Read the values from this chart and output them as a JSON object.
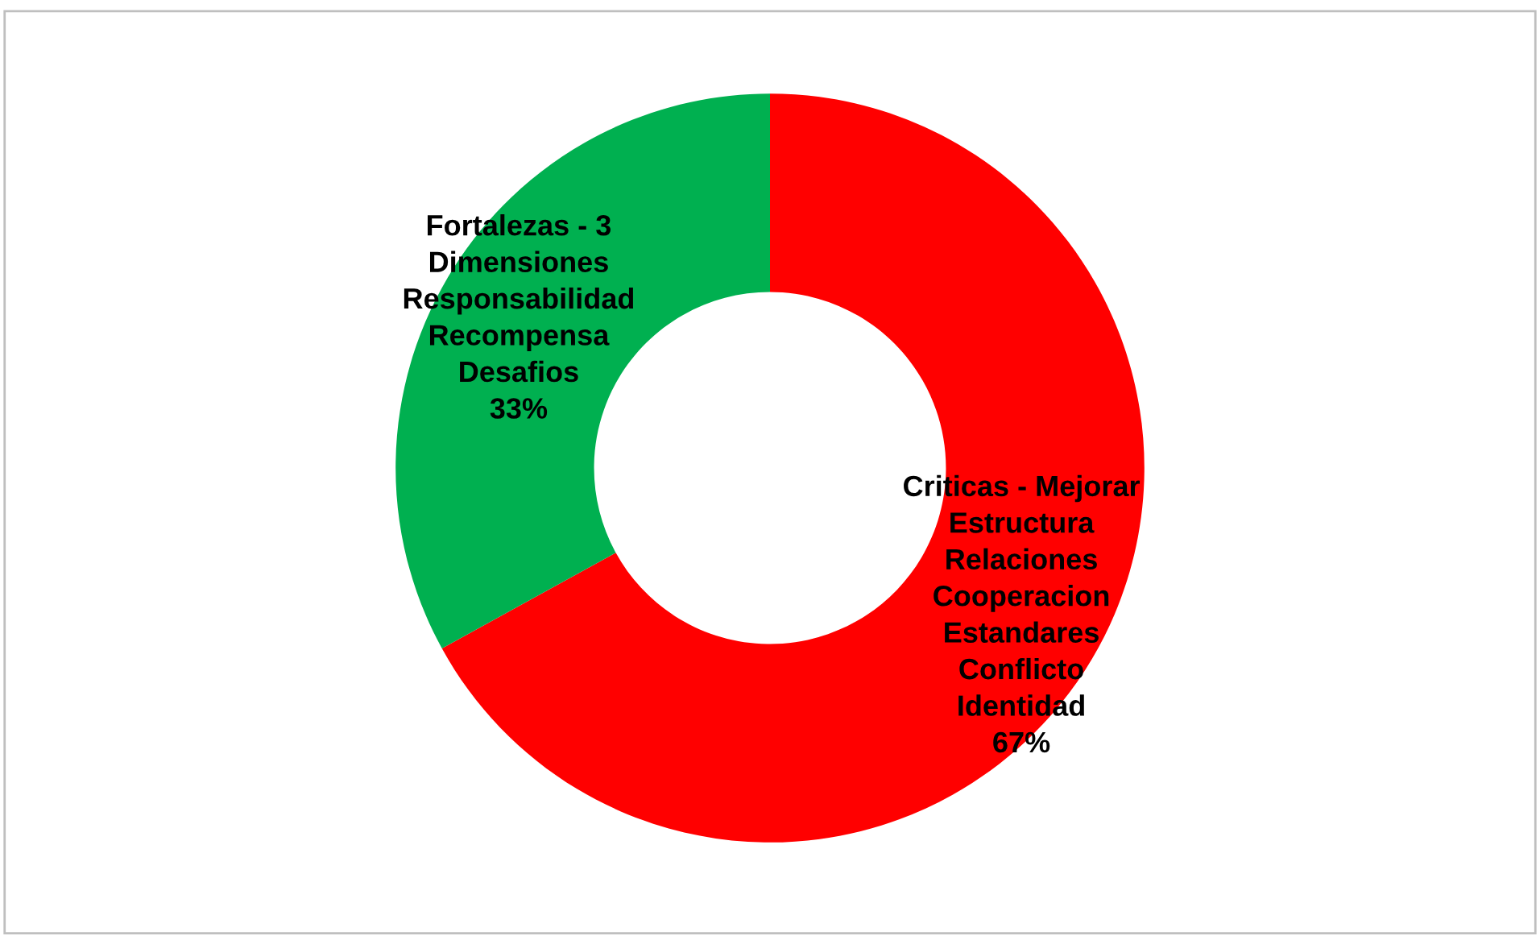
{
  "chart_data": {
    "type": "donut",
    "categories": [
      "Criticas - Mejorar\nEstructura\nRelaciones\nCooperacion\nEstandares\nConflicto\nIdentidad",
      "Fortalezas - 3\nDimensiones\nResponsabilidad\nRecompensa\nDesafios"
    ],
    "values": [
      67,
      33
    ],
    "colors": [
      "#ff0000",
      "#00b050"
    ],
    "value_labels": [
      "67%",
      "33%"
    ],
    "legend": false
  }
}
